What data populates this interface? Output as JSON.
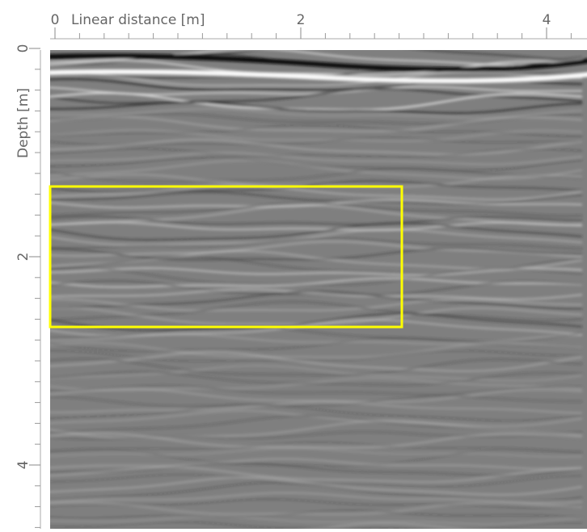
{
  "x_axis": {
    "label": "Linear distance [m]",
    "ticks": [
      0,
      2,
      4
    ]
  },
  "y_axis": {
    "label": "Depth [m]",
    "ticks": [
      0,
      2,
      4
    ]
  }
}
